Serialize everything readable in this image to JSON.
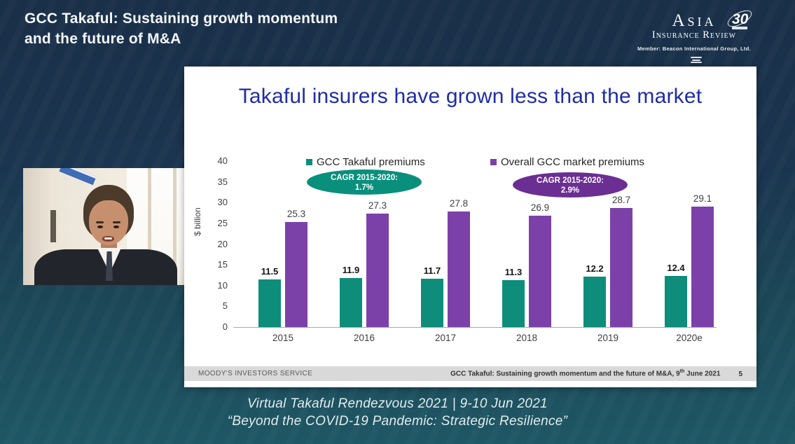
{
  "header": {
    "title_line1": "GCC Takaful: Sustaining growth momentum",
    "title_line2": "and the future of M&A"
  },
  "logo": {
    "name_line1": "Asia",
    "name_line2": "Insurance Review",
    "badge": "30",
    "member_line": "Member: Beacon International Group, Ltd."
  },
  "slide": {
    "title": "Takaful insurers have grown less than the market",
    "footer_left": "MOODY'S INVESTORS SERVICE",
    "footer_right_main": "GCC Takaful: Sustaining growth momentum and the future of M&A, 9",
    "footer_right_sup": "th",
    "footer_right_tail": " June 2021",
    "page_number": "5"
  },
  "chart_data": {
    "type": "bar",
    "title": "Takaful insurers have grown less than the market",
    "categories": [
      "2015",
      "2016",
      "2017",
      "2018",
      "2019",
      "2020e"
    ],
    "series": [
      {
        "name": "GCC Takaful premiums",
        "color": "#0e8d7b",
        "cagr_color": "#0a8f7d",
        "cagr_label": "CAGR 2015-2020:",
        "cagr_value": "1.7%",
        "values": [
          11.5,
          11.9,
          11.7,
          11.3,
          12.2,
          12.4
        ]
      },
      {
        "name": "Overall GCC market premiums",
        "color": "#7c41a8",
        "cagr_color": "#6b2e93",
        "cagr_label": "CAGR 2015-2020:",
        "cagr_value": "2.9%",
        "values": [
          25.3,
          27.3,
          27.8,
          26.9,
          28.7,
          29.1
        ]
      }
    ],
    "xlabel": "",
    "ylabel": "$ billion",
    "ylim": [
      0,
      40
    ],
    "yticks": [
      0,
      5,
      10,
      15,
      20,
      25,
      30,
      35,
      40
    ],
    "grid": false,
    "legend_position": "top"
  },
  "event_footer": {
    "line1": "Virtual Takaful Rendezvous 2021  |  9-10 Jun 2021",
    "line2": "“Beyond the COVID-19 Pandemic: Strategic Resilience”"
  },
  "colors": {
    "background_top": "#1a2f48",
    "background_bottom": "#1e5765",
    "slide_title_blue": "#1f2da6",
    "takaful_teal": "#0e8d7b",
    "market_purple": "#7c41a8"
  }
}
